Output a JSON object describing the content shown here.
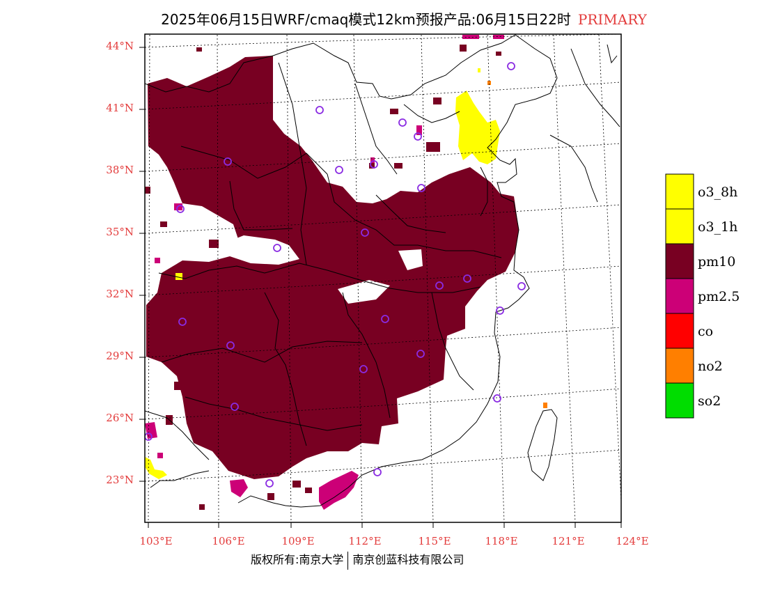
{
  "title": {
    "main": "2025年06月15日WRF/cmaq模式12km预报产品:06月15日22时",
    "tag": "PRIMARY"
  },
  "footer": {
    "left": "版权所有:南京大学",
    "right": "南京创蓝科技有限公司"
  },
  "axes": {
    "lat_labels": [
      "44°N",
      "41°N",
      "38°N",
      "35°N",
      "32°N",
      "29°N",
      "26°N",
      "23°N"
    ],
    "lon_labels": [
      "103°E",
      "106°E",
      "109°E",
      "112°E",
      "115°E",
      "118°E",
      "121°E",
      "124°E"
    ],
    "label_color": "#e33b3b"
  },
  "legend": {
    "items": [
      {
        "label": "o3_8h",
        "color": "#ffff00"
      },
      {
        "label": "o3_1h",
        "color": "#ffff00"
      },
      {
        "label": "pm10",
        "color": "#780022"
      },
      {
        "label": "pm2.5",
        "color": "#cc0077"
      },
      {
        "label": "co",
        "color": "#ff0000"
      },
      {
        "label": "no2",
        "color": "#ff7f00"
      },
      {
        "label": "so2",
        "color": "#00dd00"
      }
    ]
  },
  "colors": {
    "pm10": "#780022",
    "pm25": "#cc0077",
    "o3": "#ffff00",
    "no2": "#ff7f00",
    "city_marker": "#8a2be2"
  }
}
